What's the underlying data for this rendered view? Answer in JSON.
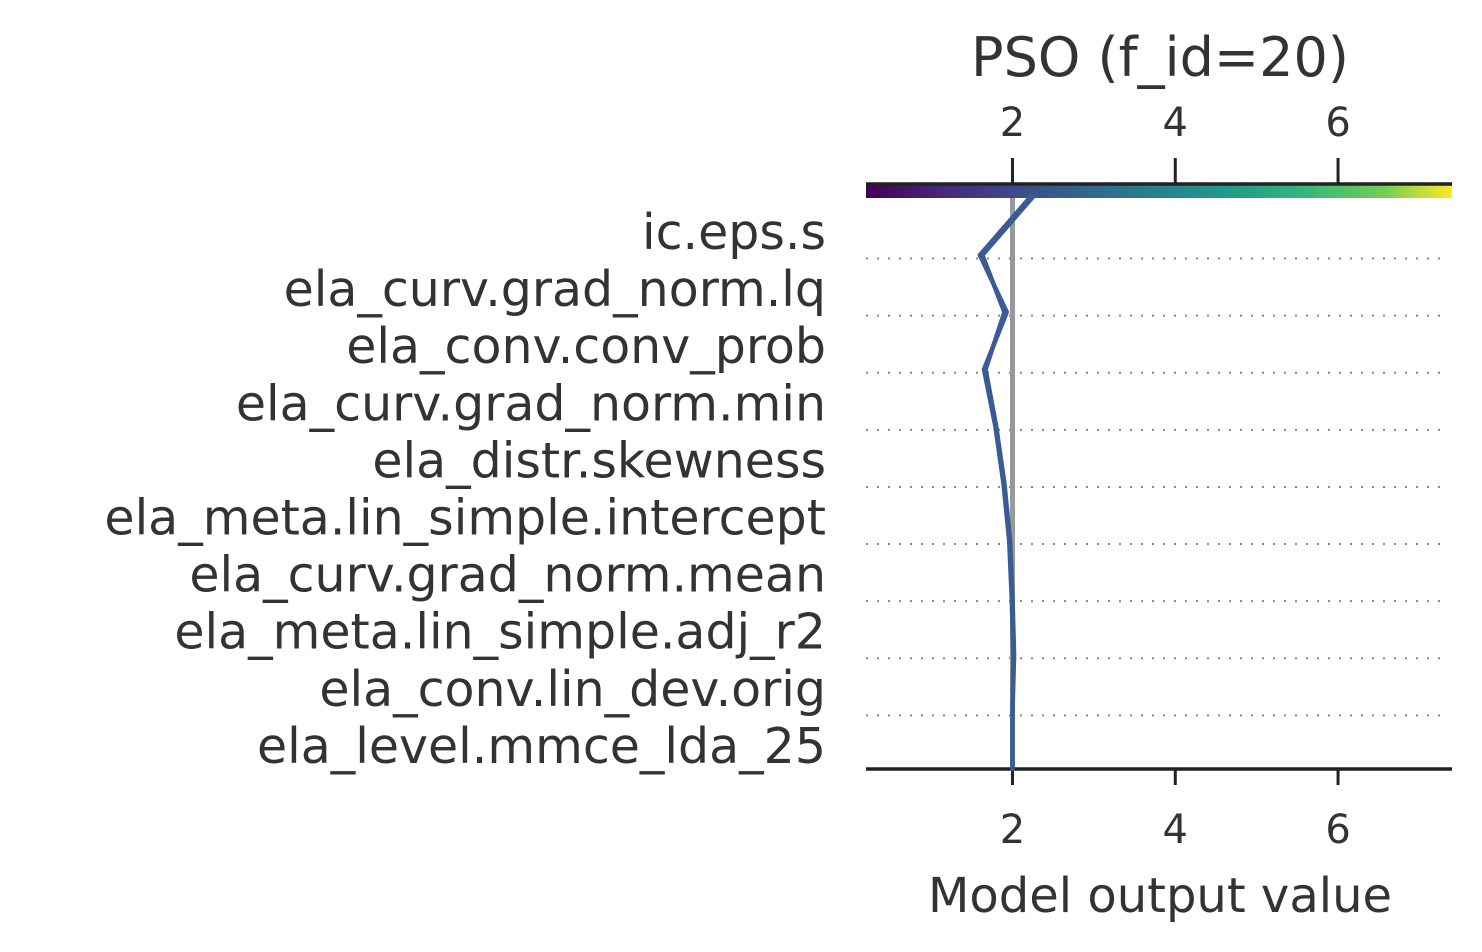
{
  "chart_data": {
    "type": "line",
    "subtype": "shap-decision-plot",
    "title": "PSO (f_id=20)",
    "xlabel": "Model output value",
    "ylabel": "",
    "xlim": [
      0.2,
      7.4
    ],
    "xticks": [
      2,
      4,
      6
    ],
    "base_value": 2.0,
    "features": [
      "ic.eps.s",
      "ela_curv.grad_norm.lq",
      "ela_conv.conv_prob",
      "ela_curv.grad_norm.min",
      "ela_distr.skewness",
      "ela_meta.lin_simple.intercept",
      "ela_curv.grad_norm.mean",
      "ela_meta.lin_simple.adj_r2",
      "ela_conv.lin_dev.orig",
      "ela_level.mmce_lda_25"
    ],
    "series": [
      {
        "points": [
          2.0,
          2.0,
          2.02,
          2.0,
          1.97,
          1.9,
          1.8,
          1.67,
          1.9,
          1.63,
          2.25
        ]
      },
      {
        "points": [
          2.0,
          2.0,
          2.01,
          1.99,
          1.96,
          1.89,
          1.79,
          1.65,
          1.93,
          1.6,
          2.22
        ]
      }
    ],
    "colorbar": {
      "colormap": "viridis",
      "range": [
        0.2,
        7.4
      ]
    },
    "colors": {
      "line": "#3b5b94",
      "base_line": "#999999",
      "axis": "#222222",
      "grid": "#888888"
    },
    "grid": "dotted-horizontal"
  }
}
